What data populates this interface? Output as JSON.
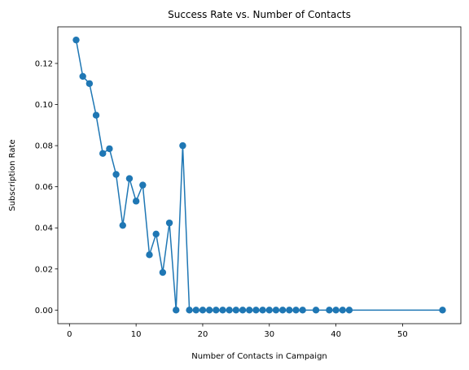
{
  "chart_data": {
    "type": "line",
    "title": "Success Rate vs. Number of Contacts",
    "xlabel": "Number of Contacts in Campaign",
    "ylabel": "Subscription Rate",
    "xlim": [
      -1.75,
      58.75
    ],
    "ylim": [
      -0.0066,
      0.1378
    ],
    "xticks": [
      0,
      10,
      20,
      30,
      40,
      50
    ],
    "yticks": [
      0.0,
      0.02,
      0.04,
      0.06,
      0.08,
      0.1,
      0.12
    ],
    "xtick_labels": [
      "0",
      "10",
      "20",
      "30",
      "40",
      "50"
    ],
    "ytick_labels": [
      "0.00",
      "0.02",
      "0.04",
      "0.06",
      "0.08",
      "0.10",
      "0.12"
    ],
    "grid": false,
    "color": "#1f77b4",
    "series": [
      {
        "x": [
          1,
          2,
          3,
          4,
          5,
          6,
          7,
          8,
          9,
          10,
          11,
          12,
          13,
          14,
          15,
          16,
          17,
          18,
          19,
          20,
          21,
          22,
          23,
          24,
          25,
          26,
          27,
          28,
          29,
          30,
          31,
          32,
          33,
          34,
          35,
          37,
          39,
          40,
          41,
          42,
          56
        ],
        "y": [
          0.1314,
          0.1137,
          0.1102,
          0.0948,
          0.0762,
          0.0785,
          0.066,
          0.0412,
          0.064,
          0.053,
          0.0608,
          0.0269,
          0.037,
          0.0183,
          0.0424,
          0.0,
          0.08,
          0.0,
          0.0,
          0.0,
          0.0,
          0.0,
          0.0,
          0.0,
          0.0,
          0.0,
          0.0,
          0.0,
          0.0,
          0.0,
          0.0,
          0.0,
          0.0,
          0.0,
          0.0,
          0.0,
          0.0,
          0.0,
          0.0,
          0.0,
          0.0
        ]
      }
    ]
  }
}
